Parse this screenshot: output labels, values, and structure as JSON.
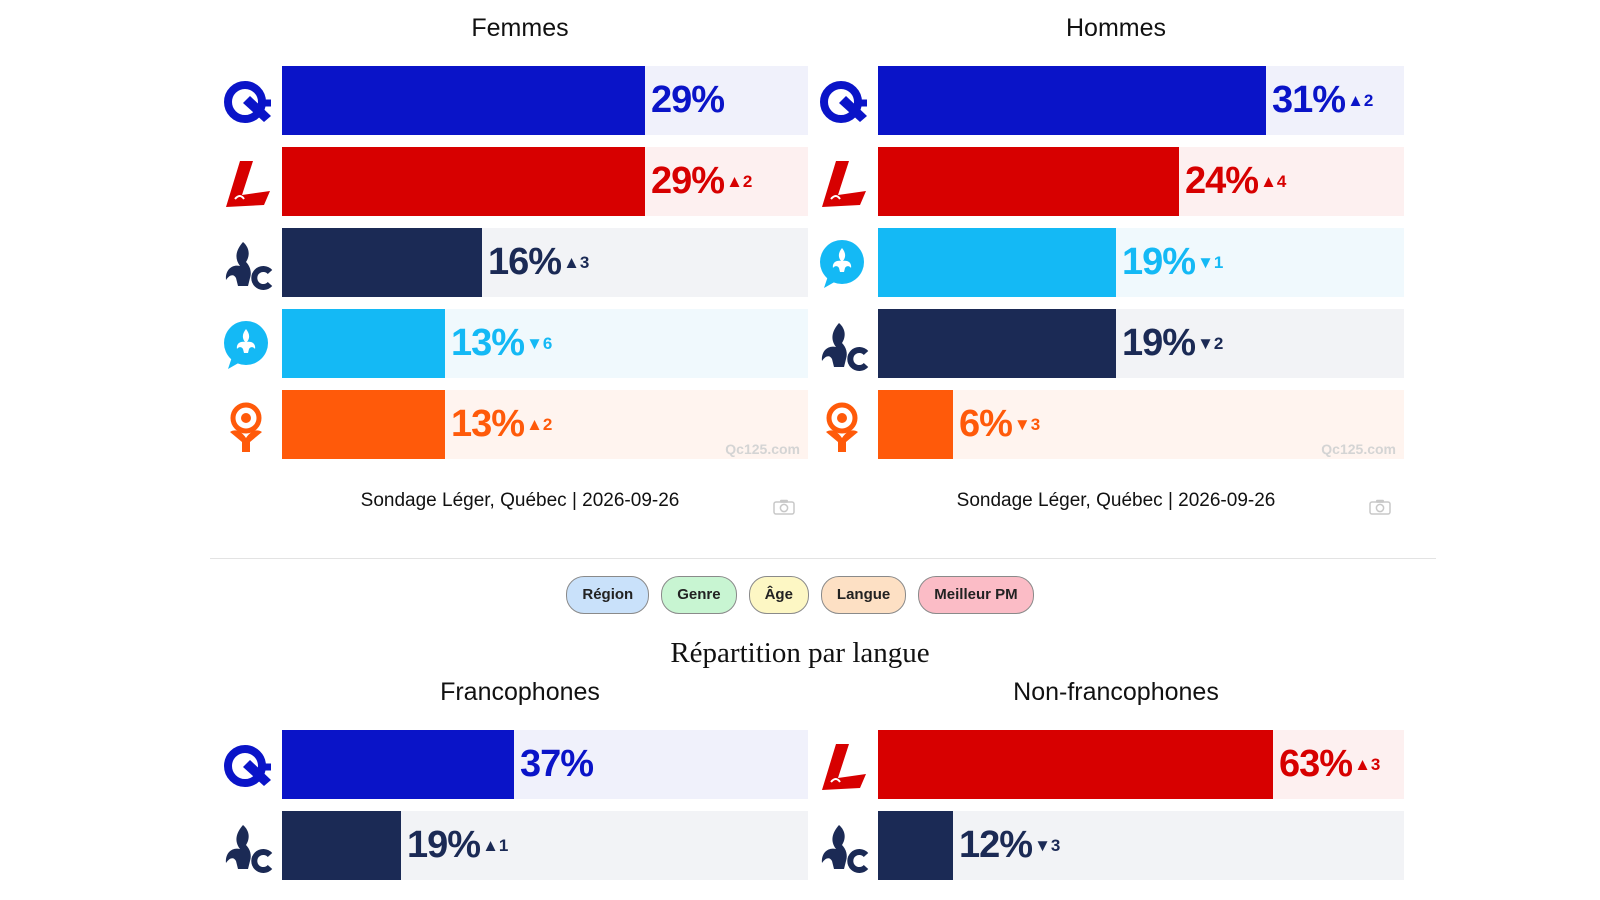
{
  "colors": {
    "caq": "#0a14c8",
    "plq": "#d70000",
    "pq": "#1b2a55",
    "qs": "#14b9f5",
    "pcq": "#ff5a0a"
  },
  "track_colors": {
    "caq": "#f0f1fb",
    "plq": "#fdf0f0",
    "pq": "#f2f3f6",
    "qs": "#f0f9fd",
    "pcq": "#fff4ef"
  },
  "party_logos": {
    "caq": "caq-logo-icon",
    "plq": "plq-logo-icon",
    "pq": "pq-logo-icon",
    "qs": "qs-logo-icon",
    "pcq": "pcq-logo-icon"
  },
  "watermark": "Qc125.com",
  "source": "Sondage Léger, Québec | 2026-09-26",
  "tabs": [
    "Région",
    "Genre",
    "Âge",
    "Langue",
    "Meilleur PM"
  ],
  "tab_colors": [
    "#c9e1fa",
    "#c8f5d2",
    "#fdf7c4",
    "#fde0c4",
    "#fbbcc6"
  ],
  "section_title": "Répartition par langue",
  "chart_data": [
    {
      "type": "bar",
      "title": "Femmes",
      "xlim": [
        0,
        42
      ],
      "bars": [
        {
          "party": "caq",
          "value": 29,
          "label": "29%",
          "change": ""
        },
        {
          "party": "plq",
          "value": 29,
          "label": "29%",
          "change": "▲2"
        },
        {
          "party": "pq",
          "value": 16,
          "label": "16%",
          "change": "▲3"
        },
        {
          "party": "qs",
          "value": 13,
          "label": "13%",
          "change": "▼6"
        },
        {
          "party": "pcq",
          "value": 13,
          "label": "13%",
          "change": "▲2"
        }
      ]
    },
    {
      "type": "bar",
      "title": "Hommes",
      "xlim": [
        0,
        42
      ],
      "bars": [
        {
          "party": "caq",
          "value": 31,
          "label": "31%",
          "change": "▲2"
        },
        {
          "party": "plq",
          "value": 24,
          "label": "24%",
          "change": "▲4"
        },
        {
          "party": "qs",
          "value": 19,
          "label": "19%",
          "change": "▼1"
        },
        {
          "party": "pq",
          "value": 19,
          "label": "19%",
          "change": "▼2"
        },
        {
          "party": "pcq",
          "value": 6,
          "label": "6%",
          "change": "▼3"
        }
      ]
    },
    {
      "type": "bar",
      "title": "Francophones",
      "xlim": [
        0,
        84
      ],
      "bars": [
        {
          "party": "caq",
          "value": 37,
          "label": "37%",
          "change": ""
        },
        {
          "party": "pq",
          "value": 19,
          "label": "19%",
          "change": "▲1"
        }
      ]
    },
    {
      "type": "bar",
      "title": "Non-francophones",
      "xlim": [
        0,
        84
      ],
      "bars": [
        {
          "party": "plq",
          "value": 63,
          "label": "63%",
          "change": "▲3"
        },
        {
          "party": "pq",
          "value": 12,
          "label": "12%",
          "change": "▼3"
        }
      ]
    }
  ]
}
